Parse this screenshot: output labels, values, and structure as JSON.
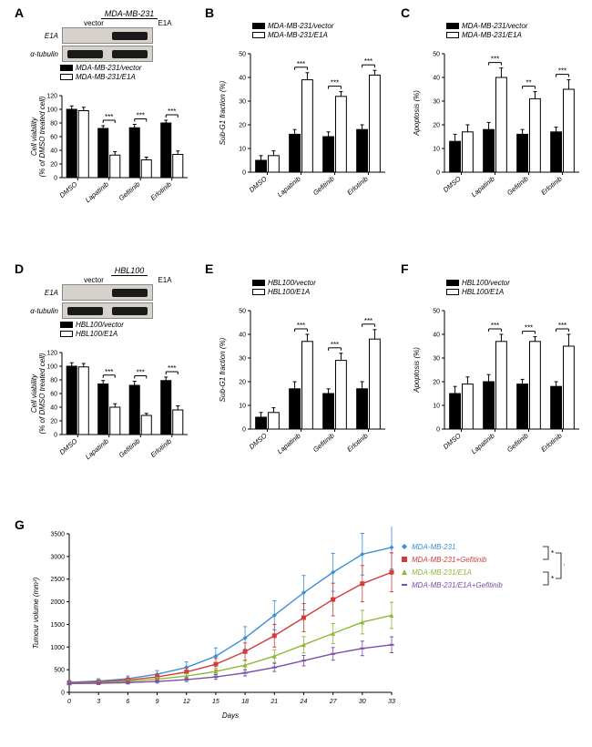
{
  "labels": {
    "A": "A",
    "B": "B",
    "C": "C",
    "D": "D",
    "E": "E",
    "F": "F",
    "G": "G"
  },
  "treatments": [
    "DMSO",
    "Lapatinib",
    "Gefitinib",
    "Erlotinib"
  ],
  "colors": {
    "vector": "#000000",
    "e1a": "#ffffff",
    "bar_stroke": "#000000",
    "axis": "#000000",
    "grid": "#ffffff",
    "wb_bg": "#d8d2cc",
    "wb_bg_dark": "#c4beb8"
  },
  "panel_A": {
    "wb_title": "MDA-MB-231",
    "wb_cols": [
      "vector",
      "E1A"
    ],
    "wb_rows": [
      {
        "label": "E1A",
        "bands": [
          false,
          true
        ]
      },
      {
        "label": "α-tubulin",
        "bands": [
          true,
          true
        ]
      }
    ],
    "legend": [
      {
        "label": "MDA-MB-231/vector",
        "fill": "#000000"
      },
      {
        "label": "MDA-MB-231/E1A",
        "fill": "#ffffff"
      }
    ],
    "ylabel": "Cell viability\n(% of DMSO treated cell)",
    "ylim": [
      0,
      120
    ],
    "ytick_step": 20,
    "data": {
      "vector": [
        100,
        72,
        73,
        80
      ],
      "e1a": [
        98,
        33,
        26,
        34
      ]
    },
    "err": {
      "vector": [
        5,
        4,
        5,
        4
      ],
      "e1a": [
        5,
        5,
        4,
        5
      ]
    },
    "sig": [
      "",
      "***",
      "***",
      "***"
    ]
  },
  "panel_B": {
    "legend": [
      {
        "label": "MDA-MB-231/vector",
        "fill": "#000000"
      },
      {
        "label": "MDA-MB-231/E1A",
        "fill": "#ffffff"
      }
    ],
    "ylabel": "Sub-G1 fraction (%)",
    "ylim": [
      0,
      50
    ],
    "ytick_step": 10,
    "data": {
      "vector": [
        5,
        16,
        15,
        18
      ],
      "e1a": [
        7,
        39,
        32,
        41
      ]
    },
    "err": {
      "vector": [
        2,
        2,
        2,
        2
      ],
      "e1a": [
        2,
        3,
        2,
        2
      ]
    },
    "sig": [
      "",
      "***",
      "***",
      "***"
    ]
  },
  "panel_C": {
    "legend": [
      {
        "label": "MDA-MB-231/vector",
        "fill": "#000000"
      },
      {
        "label": "MDA-MB-231/E1A",
        "fill": "#ffffff"
      }
    ],
    "ylabel": "Apoptosis (%)",
    "ylim": [
      0,
      50
    ],
    "ytick_step": 10,
    "data": {
      "vector": [
        13,
        18,
        16,
        17
      ],
      "e1a": [
        17,
        40,
        31,
        35
      ]
    },
    "err": {
      "vector": [
        3,
        3,
        2,
        2
      ],
      "e1a": [
        3,
        4,
        3,
        4
      ]
    },
    "sig": [
      "",
      "***",
      "**",
      "***"
    ]
  },
  "panel_D": {
    "wb_title": "HBL100",
    "wb_cols": [
      "vector",
      "E1A"
    ],
    "wb_rows": [
      {
        "label": "E1A",
        "bands": [
          false,
          true
        ]
      },
      {
        "label": "α-tubulin",
        "bands": [
          true,
          true
        ]
      }
    ],
    "legend": [
      {
        "label": "HBL100/vector",
        "fill": "#000000"
      },
      {
        "label": "HBL100/E1A",
        "fill": "#ffffff"
      }
    ],
    "ylabel": "Cell viability\n(% of DMSO treated cell)",
    "ylim": [
      0,
      120
    ],
    "ytick_step": 20,
    "data": {
      "vector": [
        100,
        74,
        72,
        79
      ],
      "e1a": [
        99,
        40,
        28,
        36
      ]
    },
    "err": {
      "vector": [
        5,
        5,
        6,
        5
      ],
      "e1a": [
        5,
        5,
        3,
        6
      ]
    },
    "sig": [
      "",
      "***",
      "***",
      "***"
    ]
  },
  "panel_E": {
    "legend": [
      {
        "label": "HBL100/vector",
        "fill": "#000000"
      },
      {
        "label": "HBL100/E1A",
        "fill": "#ffffff"
      }
    ],
    "ylabel": "Sub-G1 fraction (%)",
    "ylim": [
      0,
      50
    ],
    "ytick_step": 10,
    "data": {
      "vector": [
        5,
        17,
        15,
        17
      ],
      "e1a": [
        7,
        37,
        29,
        38
      ]
    },
    "err": {
      "vector": [
        2,
        3,
        2,
        3
      ],
      "e1a": [
        2,
        3,
        3,
        4
      ]
    },
    "sig": [
      "",
      "***",
      "***",
      "***"
    ]
  },
  "panel_F": {
    "legend": [
      {
        "label": "HBL100/vector",
        "fill": "#000000"
      },
      {
        "label": "HBL100/E1A",
        "fill": "#ffffff"
      }
    ],
    "ylabel": "Apoptosis (%)",
    "ylim": [
      0,
      50
    ],
    "ytick_step": 10,
    "data": {
      "vector": [
        15,
        20,
        19,
        18
      ],
      "e1a": [
        19,
        37,
        37,
        35
      ]
    },
    "err": {
      "vector": [
        3,
        3,
        2,
        2
      ],
      "e1a": [
        3,
        3,
        2,
        5
      ]
    },
    "sig": [
      "",
      "***",
      "***",
      "***"
    ]
  },
  "panel_G": {
    "ylabel": "Tumour volume (mm³)",
    "xlabel": "Days",
    "ylim": [
      0,
      3500
    ],
    "ytick_step": 500,
    "x": [
      0,
      3,
      6,
      9,
      12,
      15,
      18,
      21,
      24,
      27,
      30,
      33
    ],
    "series": [
      {
        "name": "MDA-MB-231",
        "color": "#3b8fd4",
        "marker": "diamond",
        "y": [
          220,
          250,
          300,
          400,
          550,
          800,
          1200,
          1700,
          2200,
          2650,
          3050,
          3200
        ],
        "err": [
          40,
          50,
          60,
          80,
          120,
          180,
          250,
          320,
          380,
          420,
          460,
          480
        ]
      },
      {
        "name": "MDA-MB-231+Gefitinib",
        "color": "#d43b3b",
        "marker": "square",
        "y": [
          210,
          230,
          270,
          340,
          450,
          620,
          900,
          1250,
          1650,
          2050,
          2400,
          2650
        ],
        "err": [
          35,
          40,
          50,
          65,
          90,
          130,
          190,
          250,
          310,
          360,
          400,
          430
        ]
      },
      {
        "name": "MDA-MB-231/E1A",
        "color": "#8fb83b",
        "marker": "triangle",
        "y": [
          200,
          210,
          240,
          290,
          360,
          460,
          600,
          800,
          1050,
          1300,
          1550,
          1700
        ],
        "err": [
          30,
          32,
          38,
          45,
          55,
          75,
          100,
          140,
          180,
          220,
          260,
          290
        ]
      },
      {
        "name": "MDA-MB-231/E1A+Gefitinib",
        "color": "#7b4fa8",
        "marker": "hline",
        "y": [
          195,
          200,
          215,
          240,
          280,
          340,
          430,
          550,
          700,
          850,
          970,
          1050
        ],
        "err": [
          25,
          26,
          30,
          35,
          42,
          52,
          68,
          90,
          115,
          140,
          160,
          175
        ]
      }
    ],
    "brackets": [
      {
        "pairs": [
          0,
          1
        ],
        "sig": "*"
      },
      {
        "pairs": [
          0,
          3
        ],
        "sig": "*"
      },
      {
        "pairs": [
          1,
          3
        ],
        "sig": "*"
      },
      {
        "pairs": [
          2,
          3
        ],
        "sig": "*"
      }
    ]
  }
}
